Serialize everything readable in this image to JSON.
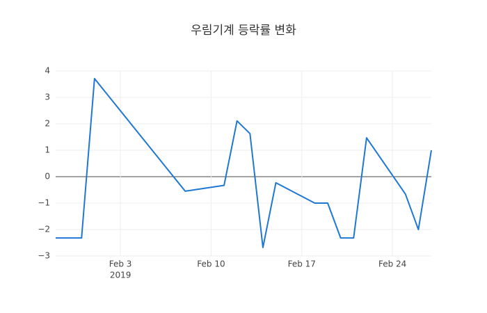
{
  "chart_data": {
    "type": "line",
    "title": "우림기계 등락률 변화",
    "x": [
      "2019-01-29",
      "2019-01-31",
      "2019-02-01",
      "2019-02-08",
      "2019-02-11",
      "2019-02-12",
      "2019-02-13",
      "2019-02-14",
      "2019-02-15",
      "2019-02-18",
      "2019-02-19",
      "2019-02-20",
      "2019-02-21",
      "2019-02-22",
      "2019-02-25",
      "2019-02-26",
      "2019-02-27"
    ],
    "values": [
      -2.32,
      -2.32,
      3.71,
      -0.55,
      -0.33,
      2.11,
      1.63,
      -2.68,
      -0.23,
      -1.0,
      -1.0,
      -2.32,
      -2.32,
      1.47,
      -0.66,
      -2.0,
      1.0
    ],
    "color": "#1f77d4",
    "xlim": [
      "2019-01-29",
      "2019-02-27"
    ],
    "xticks": [
      {
        "value": "2019-02-03",
        "label": "Feb 3"
      },
      {
        "value": "2019-02-10",
        "label": "Feb 10"
      },
      {
        "value": "2019-02-17",
        "label": "Feb 17"
      },
      {
        "value": "2019-02-24",
        "label": "Feb 24"
      }
    ],
    "x_year_label": "2019",
    "ylim": [
      -3,
      4
    ],
    "yticks": [
      {
        "value": -3,
        "label": "−3"
      },
      {
        "value": -2,
        "label": "−2"
      },
      {
        "value": -1,
        "label": "−1"
      },
      0,
      1,
      2,
      3,
      4
    ],
    "grid": true,
    "zeroline": true
  }
}
